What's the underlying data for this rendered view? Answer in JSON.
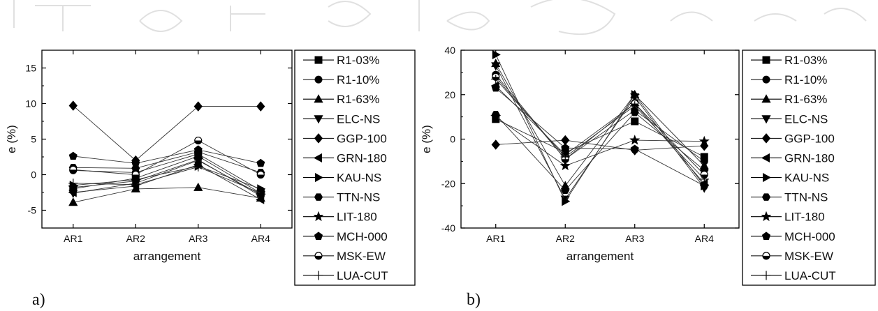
{
  "chart_data": [
    {
      "type": "line",
      "panel_label": "a)",
      "categories": [
        "AR1",
        "AR2",
        "AR3",
        "AR4"
      ],
      "xlabel": "arrangement",
      "ylabel": "e (%)",
      "ylim": [
        -7.5,
        17.5
      ],
      "yticks": [
        "-5",
        "0",
        "5",
        "10",
        "15"
      ],
      "grid": false,
      "legend_position": "right",
      "series": [
        {
          "name": "R1-03%",
          "marker": "square",
          "values": [
            -2.0,
            -0.5,
            2.6,
            -2.6
          ]
        },
        {
          "name": "R1-10%",
          "marker": "circle",
          "values": [
            0.6,
            0.3,
            2.9,
            -2.2
          ]
        },
        {
          "name": "R1-63%",
          "marker": "triangle-up",
          "values": [
            -3.9,
            -2.0,
            -1.8,
            -3.3
          ]
        },
        {
          "name": "ELC-NS",
          "marker": "triangle-down",
          "values": [
            -2.6,
            -1.2,
            2.0,
            -2.8
          ]
        },
        {
          "name": "GGP-100",
          "marker": "diamond",
          "values": [
            9.7,
            2.0,
            9.6,
            9.6
          ]
        },
        {
          "name": "GRN-180",
          "marker": "triangle-left",
          "values": [
            -2.5,
            -1.6,
            1.4,
            -3.5
          ]
        },
        {
          "name": "KAU-NS",
          "marker": "triangle-right",
          "values": [
            -1.5,
            -0.7,
            1.2,
            -2.0
          ]
        },
        {
          "name": "TTN-NS",
          "marker": "hexagon",
          "values": [
            1.0,
            0.9,
            3.2,
            0.3
          ]
        },
        {
          "name": "LIT-180",
          "marker": "star",
          "values": [
            -1.8,
            -0.9,
            2.1,
            -3.0
          ]
        },
        {
          "name": "MCH-000",
          "marker": "pentagon",
          "values": [
            2.6,
            1.6,
            3.5,
            1.6
          ]
        },
        {
          "name": "MSK-EW",
          "marker": "half-circle",
          "values": [
            0.7,
            0.0,
            4.8,
            0.0
          ]
        },
        {
          "name": "LUA-CUT",
          "marker": "plus",
          "values": [
            -1.2,
            -1.4,
            1.1,
            -2.6
          ]
        }
      ]
    },
    {
      "type": "line",
      "panel_label": "b)",
      "categories": [
        "AR1",
        "AR2",
        "AR3",
        "AR4"
      ],
      "xlabel": "arrangement",
      "ylabel": "e (%)",
      "ylim": [
        -40,
        40
      ],
      "yticks": [
        "-40",
        "-20",
        "0",
        "20",
        "40"
      ],
      "grid": false,
      "legend_position": "right",
      "series": [
        {
          "name": "R1-03%",
          "marker": "square",
          "values": [
            9,
            -6,
            8,
            -8
          ]
        },
        {
          "name": "R1-10%",
          "marker": "circle",
          "values": [
            29,
            -9,
            13,
            -10
          ]
        },
        {
          "name": "R1-63%",
          "marker": "triangle-up",
          "values": [
            34,
            -21,
            20,
            -12
          ]
        },
        {
          "name": "ELC-NS",
          "marker": "triangle-down",
          "values": [
            33,
            -27,
            19,
            -22
          ]
        },
        {
          "name": "GGP-100",
          "marker": "diamond",
          "values": [
            -2.5,
            -0.5,
            -5,
            -3
          ]
        },
        {
          "name": "GRN-180",
          "marker": "triangle-left",
          "values": [
            24,
            -7,
            16,
            -20
          ]
        },
        {
          "name": "KAU-NS",
          "marker": "triangle-right",
          "values": [
            38,
            -28,
            20,
            -21
          ]
        },
        {
          "name": "TTN-NS",
          "marker": "hexagon",
          "values": [
            11,
            -23,
            12,
            -14
          ]
        },
        {
          "name": "LIT-180",
          "marker": "star",
          "values": [
            10,
            -12,
            -0.5,
            -1
          ]
        },
        {
          "name": "MCH-000",
          "marker": "pentagon",
          "values": [
            23,
            -4,
            -4.5,
            -21
          ]
        },
        {
          "name": "MSK-EW",
          "marker": "half-circle",
          "values": [
            28,
            -9,
            16,
            -16
          ]
        },
        {
          "name": "LUA-CUT",
          "marker": "plus",
          "values": [
            27,
            -8,
            15,
            -18
          ]
        }
      ]
    }
  ]
}
